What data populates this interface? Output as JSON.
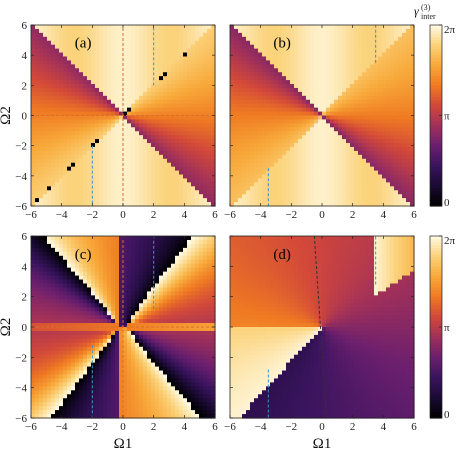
{
  "chart_data": [
    {
      "type": "heatmap",
      "panel_label": "(a)",
      "xlabel": "",
      "ylabel": "Ω2",
      "xlim": [
        -6,
        6
      ],
      "ylim": [
        -6,
        6
      ],
      "x_ticks": [
        "-6",
        "-4",
        "-2",
        "0",
        "2",
        "4",
        "6"
      ],
      "y_ticks": [
        "-6",
        "-4",
        "-2",
        "0",
        "2",
        "4",
        "6"
      ],
      "colorbar": "top",
      "pattern": "a"
    },
    {
      "type": "heatmap",
      "panel_label": "(b)",
      "xlabel": "",
      "ylabel": "",
      "xlim": [
        -6,
        6
      ],
      "ylim": [
        -6,
        6
      ],
      "x_ticks": [
        "-6",
        "-4",
        "-2",
        "0",
        "2",
        "4",
        "6"
      ],
      "y_ticks": [
        "-6",
        "-4",
        "-2",
        "0",
        "2",
        "4",
        "6"
      ],
      "colorbar": "top",
      "pattern": "b"
    },
    {
      "type": "heatmap",
      "panel_label": "(c)",
      "xlabel": "Ω1",
      "ylabel": "Ω2",
      "xlim": [
        -6,
        6
      ],
      "ylim": [
        -6,
        6
      ],
      "x_ticks": [
        "-6",
        "-4",
        "-2",
        "0",
        "2",
        "4",
        "6"
      ],
      "y_ticks": [
        "-6",
        "-4",
        "-2",
        "0",
        "2",
        "4",
        "6"
      ],
      "colorbar": "bottom",
      "pattern": "c"
    },
    {
      "type": "heatmap",
      "panel_label": "(d)",
      "xlabel": "Ω1",
      "ylabel": "",
      "xlim": [
        -6,
        6
      ],
      "ylim": [
        -6,
        6
      ],
      "x_ticks": [
        "-6",
        "-4",
        "-2",
        "0",
        "2",
        "4",
        "6"
      ],
      "y_ticks": [
        "-6",
        "-4",
        "-2",
        "0",
        "2",
        "4",
        "6"
      ],
      "colorbar": "bottom",
      "pattern": "d"
    }
  ],
  "colorbars": {
    "title_main": "γ",
    "title_sub": "inter",
    "title_sup": "(3)",
    "ticks": [
      "0",
      "π",
      "2π"
    ],
    "range": [
      0,
      6.283
    ]
  },
  "colors": {
    "colormap": [
      "#000000",
      "#1a0a33",
      "#3a145e",
      "#6b1f6e",
      "#a0305a",
      "#d2483a",
      "#ef7a22",
      "#f8a93a",
      "#fbd27a",
      "#fffbe6"
    ],
    "dash_blue": "#3a8fd0",
    "dash_orange": "#d8702a",
    "dash_black": "#333333"
  }
}
